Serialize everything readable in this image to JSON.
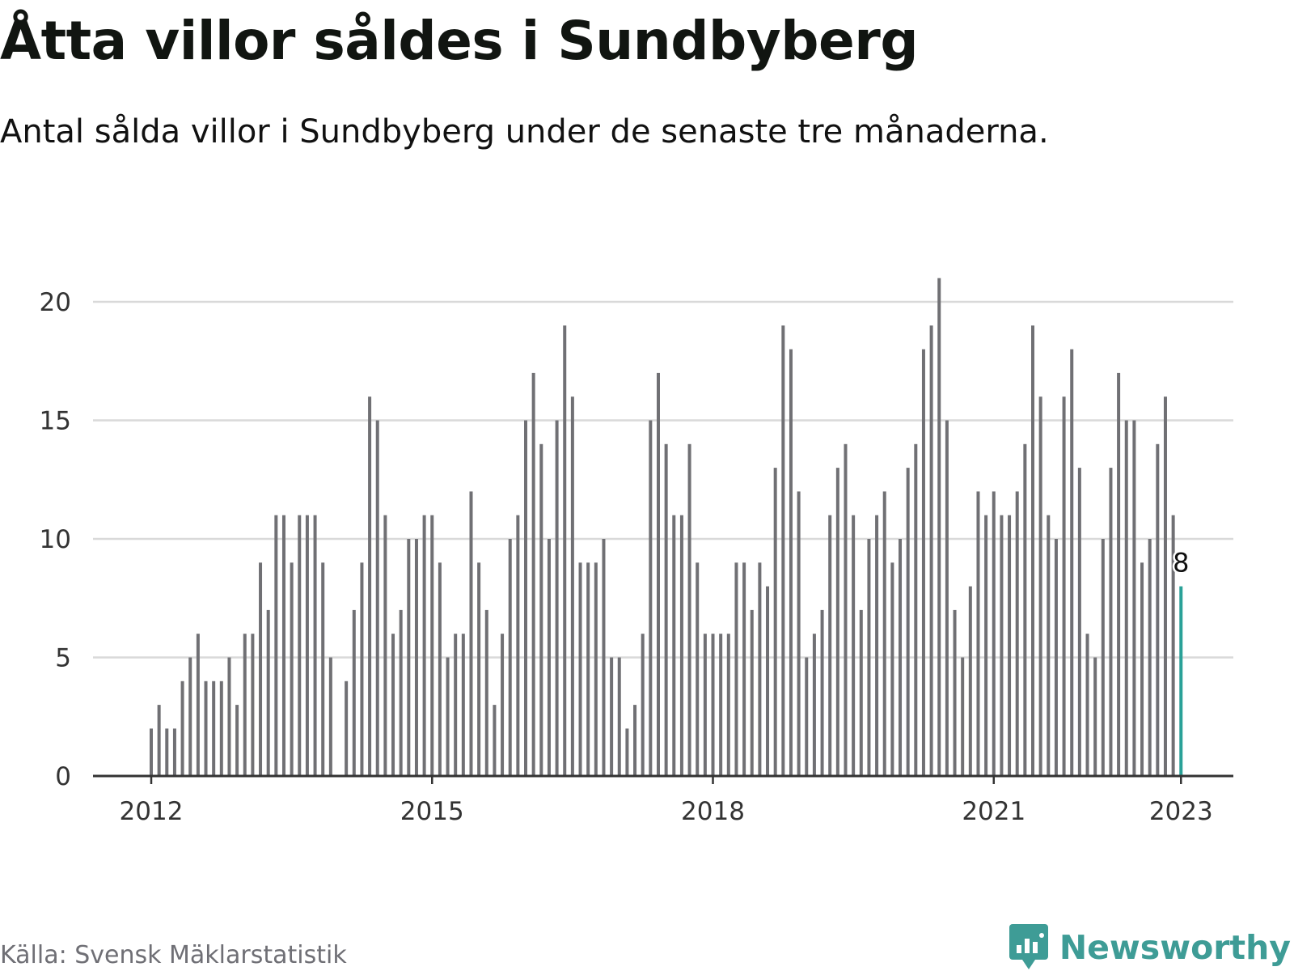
{
  "title": "Åtta villor såldes i Sundbyberg",
  "subtitle": "Antal sålda villor i Sundbyberg under de senaste tre månaderna.",
  "source": "Källa: Svensk Mäklarstatistik",
  "brand": "Newsworthy",
  "colors": {
    "bar": "#707074",
    "highlight": "#2aa198",
    "grid": "#d9d9d9",
    "axis": "#333333",
    "brand": "#3e9c96"
  },
  "chart_data": {
    "type": "bar",
    "title": "Åtta villor såldes i Sundbyberg",
    "subtitle": "Antal sålda villor i Sundbyberg under de senaste tre månaderna.",
    "xlabel": "",
    "ylabel": "",
    "ylim": [
      0,
      21
    ],
    "yticks": [
      0,
      5,
      10,
      15,
      20
    ],
    "xticks": [
      "2012",
      "2015",
      "2018",
      "2021",
      "2023"
    ],
    "grid": true,
    "legend": "none",
    "x_start": "2012-01",
    "x_end": "2023-01",
    "highlight": {
      "x": "2023-01",
      "value": 8,
      "label": "8"
    },
    "series": [
      {
        "values": [
          2,
          3,
          2,
          2,
          4,
          5,
          6,
          4,
          4,
          4,
          5,
          3,
          6,
          6,
          9,
          7,
          11,
          11,
          9,
          11,
          11,
          11,
          9,
          5,
          0,
          4,
          7,
          9,
          16,
          15,
          11,
          6,
          7,
          10,
          10,
          11,
          11,
          9,
          5,
          6,
          6,
          12,
          9,
          7,
          3,
          6,
          10,
          11,
          15,
          17,
          14,
          10,
          15,
          19,
          16,
          9,
          9,
          9,
          10,
          5,
          5,
          2,
          3,
          6,
          15,
          17,
          14,
          11,
          11,
          14,
          9,
          6,
          6,
          6,
          6,
          9,
          9,
          7,
          9,
          8,
          13,
          19,
          18,
          12,
          5,
          6,
          7,
          11,
          13,
          14,
          11,
          7,
          10,
          11,
          12,
          9,
          10,
          13,
          14,
          18,
          19,
          21,
          15,
          7,
          5,
          8,
          12,
          11,
          12,
          11,
          11,
          12,
          14,
          19,
          16,
          11,
          10,
          16,
          18,
          13,
          6,
          5,
          10,
          13,
          17,
          15,
          15,
          9,
          10,
          14,
          16,
          11,
          8
        ]
      }
    ]
  }
}
